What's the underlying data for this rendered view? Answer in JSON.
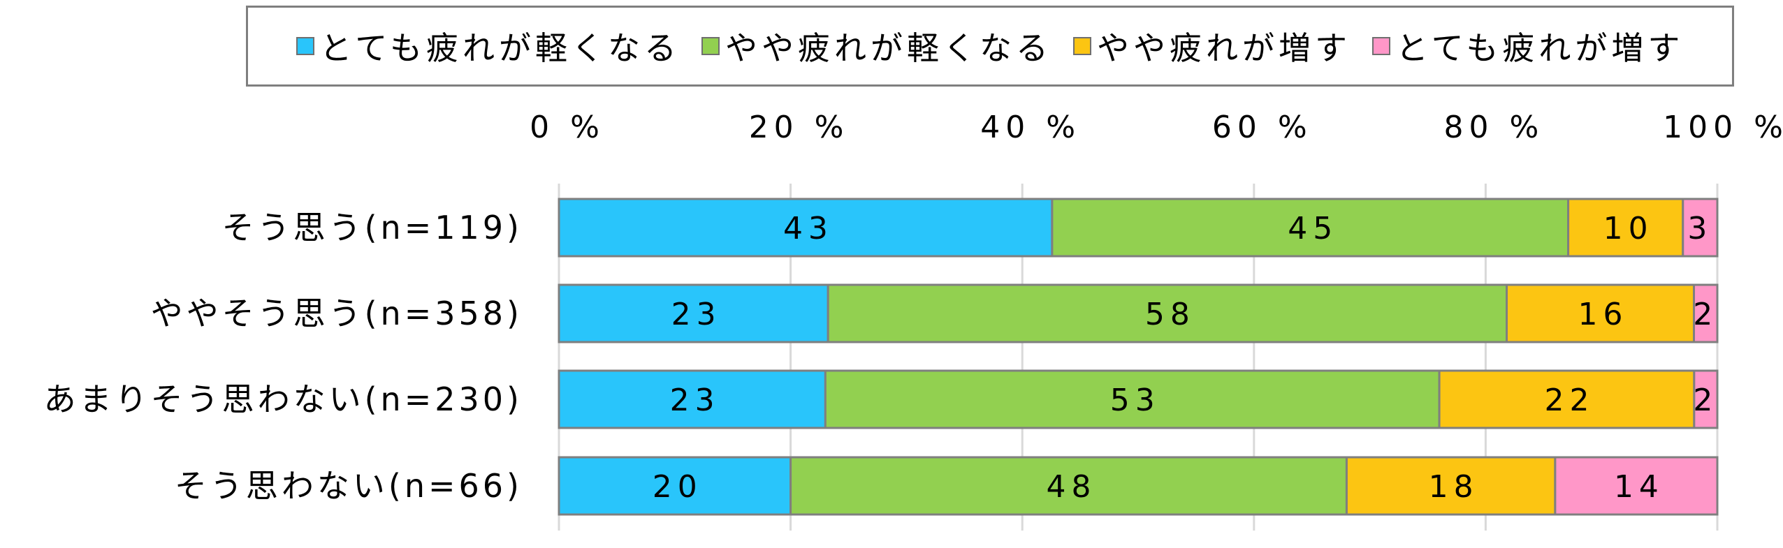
{
  "chart_data": {
    "type": "bar",
    "orientation": "horizontal",
    "stacked": "percent",
    "title": "",
    "xlabel": "",
    "ylabel": "",
    "xlim": [
      0,
      100
    ],
    "x_ticks": [
      "0 %",
      "20 %",
      "40 %",
      "60 %",
      "80 %",
      "100 %"
    ],
    "grid": "vertical",
    "legend_position": "top",
    "categories": [
      "そう思う(n=119)",
      "ややそう思う(n=358)",
      "あまりそう思わない(n=230)",
      "そう思わない(n=66)"
    ],
    "series": [
      {
        "name": "とても疲れが軽くなる",
        "color": "#29c5fb",
        "values": [
          43,
          23,
          23,
          20
        ]
      },
      {
        "name": "やや疲れが軽くなる",
        "color": "#92d050",
        "values": [
          45,
          58,
          53,
          48
        ]
      },
      {
        "name": "やや疲れが増す",
        "color": "#fcc512",
        "values": [
          10,
          16,
          22,
          18
        ]
      },
      {
        "name": "とても疲れが増す",
        "color": "#ff97c8",
        "values": [
          3,
          2,
          2,
          14
        ]
      }
    ],
    "bar_values": [
      [
        43,
        45,
        10,
        3
      ],
      [
        23,
        58,
        16,
        2
      ],
      [
        23,
        53,
        22,
        2
      ],
      [
        20,
        48,
        18,
        14
      ]
    ]
  }
}
